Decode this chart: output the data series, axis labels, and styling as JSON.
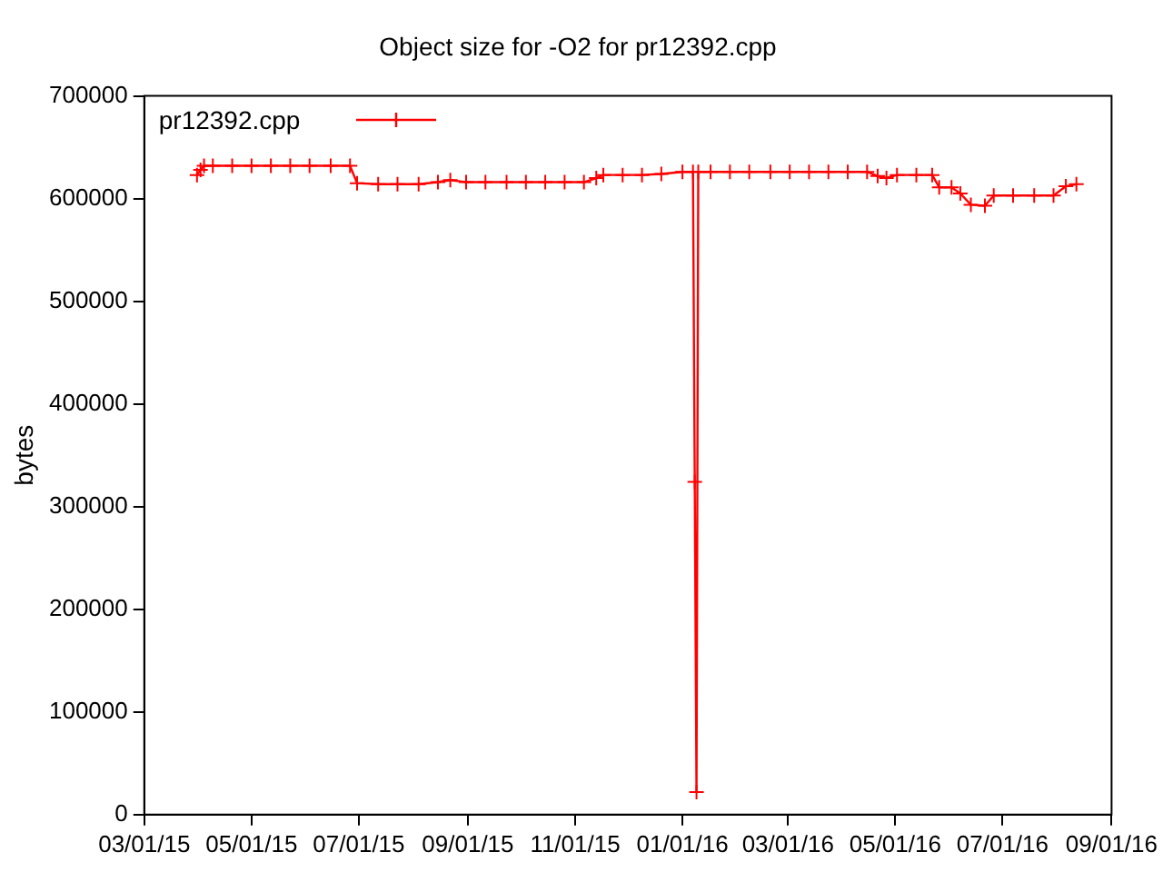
{
  "chart_data": {
    "type": "line",
    "title": "Object size for -O2 for pr12392.cpp",
    "ylabel": "bytes",
    "x": [
      "2015-03-31",
      "2015-04-02",
      "2015-04-04",
      "2015-04-09",
      "2015-04-20",
      "2015-05-01",
      "2015-05-12",
      "2015-05-23",
      "2015-06-03",
      "2015-06-15",
      "2015-06-26",
      "2015-06-30",
      "2015-07-12",
      "2015-07-23",
      "2015-08-04",
      "2015-08-15",
      "2015-08-22",
      "2015-08-31",
      "2015-09-11",
      "2015-09-23",
      "2015-10-04",
      "2015-10-15",
      "2015-10-26",
      "2015-11-06",
      "2015-11-13",
      "2015-11-17",
      "2015-11-28",
      "2015-12-09",
      "2015-12-20",
      "2016-01-01",
      "2016-01-07",
      "2016-01-08",
      "2016-01-09",
      "2016-01-10",
      "2016-01-17",
      "2016-01-28",
      "2016-02-08",
      "2016-02-20",
      "2016-03-02",
      "2016-03-13",
      "2016-03-24",
      "2016-04-04",
      "2016-04-15",
      "2016-04-21",
      "2016-04-26",
      "2016-05-02",
      "2016-05-13",
      "2016-05-22",
      "2016-05-26",
      "2016-06-02",
      "2016-06-07",
      "2016-06-13",
      "2016-06-21",
      "2016-06-26",
      "2016-07-07",
      "2016-07-19",
      "2016-07-30",
      "2016-08-06",
      "2016-08-12"
    ],
    "series": [
      {
        "name": "pr12392.cpp",
        "color": "#ff0000",
        "values": [
          623000,
          628000,
          632000,
          632000,
          632000,
          632000,
          632000,
          632000,
          632000,
          632000,
          632000,
          615000,
          614000,
          614000,
          614000,
          616000,
          618000,
          616000,
          616000,
          616000,
          616000,
          616000,
          616000,
          616000,
          620000,
          623000,
          623000,
          623000,
          624000,
          626000,
          626000,
          324000,
          22000,
          626000,
          626000,
          626000,
          626000,
          626000,
          626000,
          626000,
          626000,
          626000,
          626000,
          622000,
          620000,
          623000,
          623000,
          623000,
          611000,
          611000,
          605000,
          594000,
          593000,
          603000,
          603000,
          603000,
          603000,
          612000,
          614000
        ]
      }
    ],
    "xlim": [
      "2015-03-01",
      "2016-09-01"
    ],
    "xticks": [
      {
        "value": "2015-03-01",
        "label": "03/01/15"
      },
      {
        "value": "2015-05-01",
        "label": "05/01/15"
      },
      {
        "value": "2015-07-01",
        "label": "07/01/15"
      },
      {
        "value": "2015-09-01",
        "label": "09/01/15"
      },
      {
        "value": "2015-11-01",
        "label": "11/01/15"
      },
      {
        "value": "2016-01-01",
        "label": "01/01/16"
      },
      {
        "value": "2016-03-01",
        "label": "03/01/16"
      },
      {
        "value": "2016-05-01",
        "label": "05/01/16"
      },
      {
        "value": "2016-07-01",
        "label": "07/01/16"
      },
      {
        "value": "2016-09-01",
        "label": "09/01/16"
      }
    ],
    "ylim": [
      0,
      700000
    ],
    "yticks": [
      0,
      100000,
      200000,
      300000,
      400000,
      500000,
      600000,
      700000
    ],
    "grid": false,
    "legend": "top left",
    "marker": "cross",
    "line_style": "solid"
  }
}
